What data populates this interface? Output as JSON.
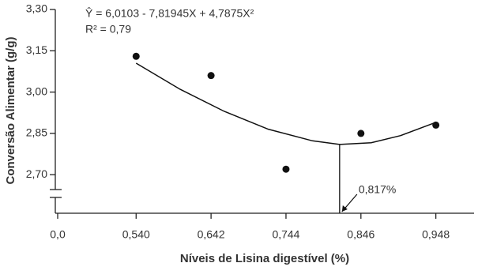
{
  "chart_data": {
    "type": "scatter",
    "equation": "Ŷ = 6,0103 - 7,81945X + 4,7875X²",
    "r_squared": "R² = 0,79",
    "x_label": "Níveis de Lisina digestível (%)",
    "y_label": "Conversão Alimentar (g/g)",
    "x": [
      0.54,
      0.642,
      0.744,
      0.846,
      0.948
    ],
    "series": [
      {
        "color": "#111111",
        "values": [
          3.13,
          3.06,
          2.72,
          2.85,
          2.88
        ]
      }
    ],
    "fit": {
      "color": "#111111",
      "x": [
        0.54,
        0.6,
        0.66,
        0.72,
        0.78,
        0.817,
        0.86,
        0.9,
        0.948
      ],
      "values": [
        3.105,
        3.01,
        2.93,
        2.865,
        2.823,
        2.81,
        2.816,
        2.842,
        2.89
      ]
    },
    "annotation": {
      "x": 0.817,
      "y": 2.81,
      "label": "0,817%"
    },
    "xlim": [
      0.43,
      1.0
    ],
    "ylim": [
      2.56,
      3.3
    ],
    "xticks": [
      {
        "value": 0,
        "label": "0,0"
      },
      {
        "value": 0.54,
        "label": "0,540"
      },
      {
        "value": 0.642,
        "label": "0,642"
      },
      {
        "value": 0.744,
        "label": "0,744"
      },
      {
        "value": 0.846,
        "label": "0,846"
      },
      {
        "value": 0.948,
        "label": "0,948"
      }
    ],
    "yticks": [
      {
        "value": 2.7,
        "label": "2,70"
      },
      {
        "value": 2.85,
        "label": "2,85"
      },
      {
        "value": 3.0,
        "label": "3,00"
      },
      {
        "value": 3.15,
        "label": "3,15"
      },
      {
        "value": 3.3,
        "label": "3,30"
      }
    ],
    "axis_break": true,
    "grid": false
  }
}
